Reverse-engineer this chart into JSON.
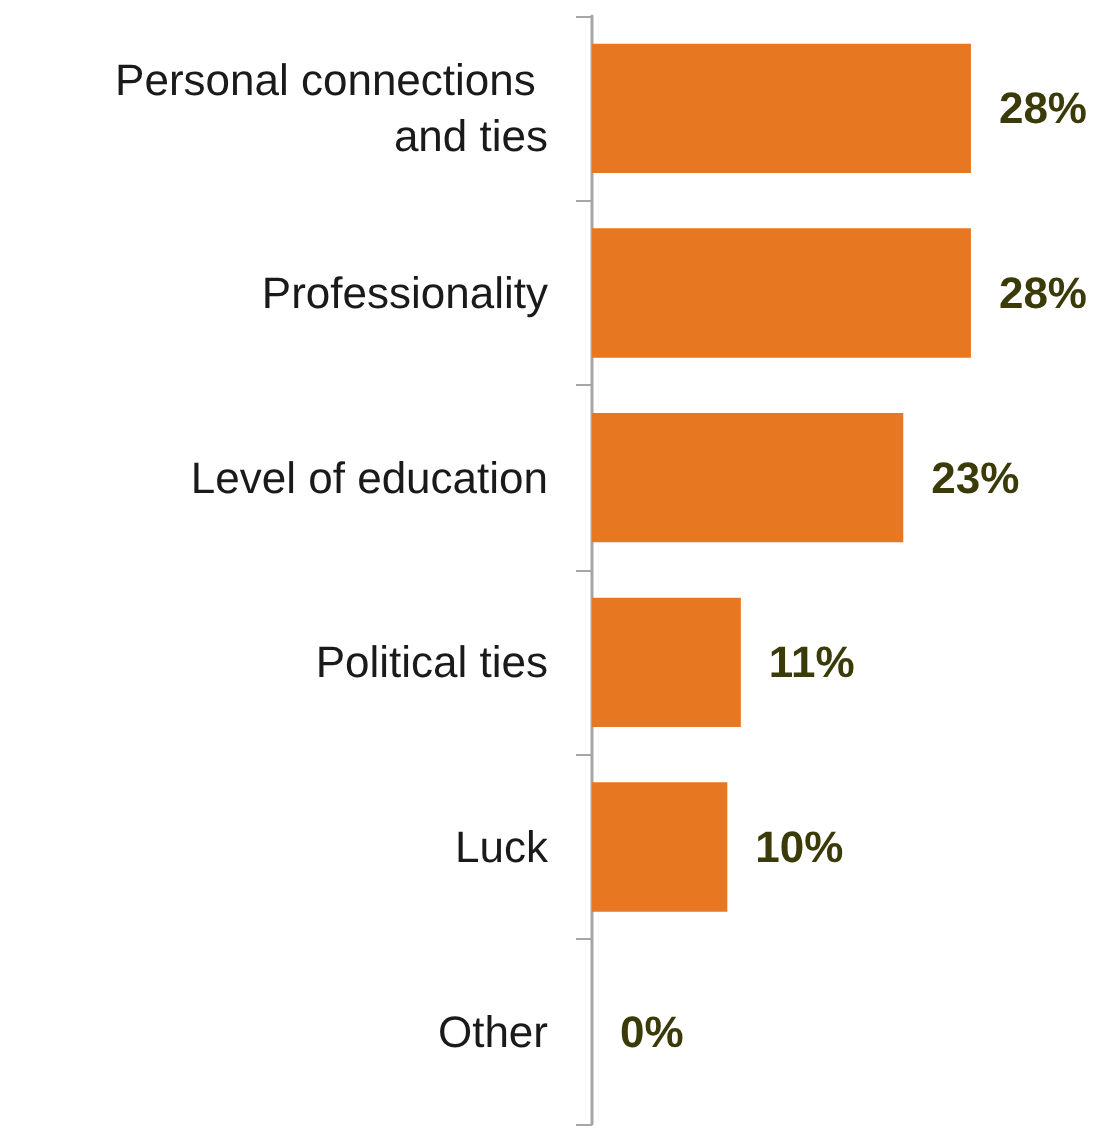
{
  "chart_data": {
    "type": "bar",
    "orientation": "horizontal",
    "categories": [
      "Personal connections and ties",
      "Professionality",
      "Level of education",
      "Political ties",
      "Luck",
      "Other"
    ],
    "values": [
      28,
      28,
      23,
      11,
      10,
      0
    ],
    "color": "#e87722",
    "value_labels": [
      "28%",
      "28%",
      "23%",
      "11%",
      "10%",
      "0%"
    ]
  }
}
